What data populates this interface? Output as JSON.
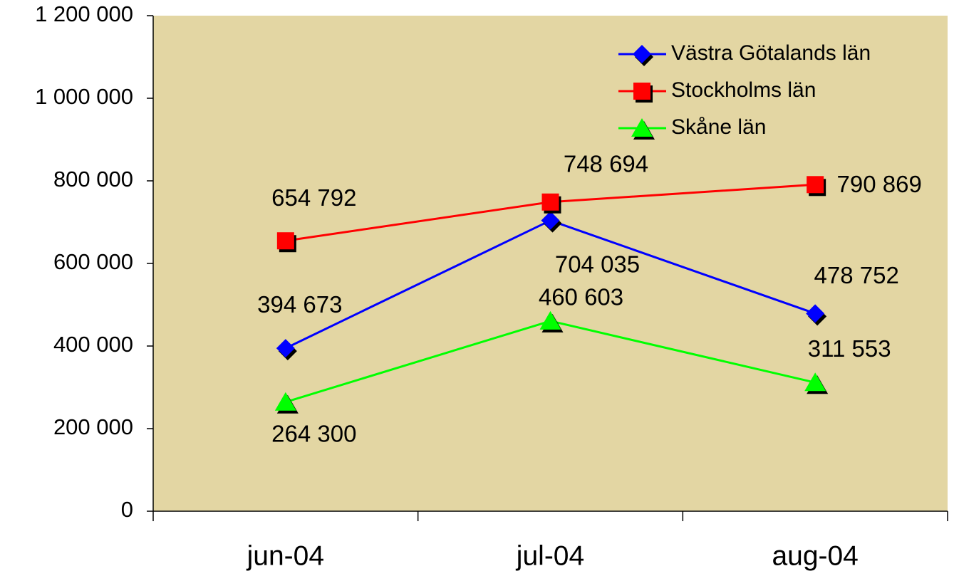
{
  "chart_data": {
    "type": "line",
    "categories": [
      "jun-04",
      "jul-04",
      "aug-04"
    ],
    "series": [
      {
        "name": "Västra Götalands län",
        "color": "#0000ff",
        "marker": "diamond",
        "values": [
          394673,
          704035,
          478752
        ],
        "value_labels": [
          "394 673",
          "704 035",
          "478 752"
        ]
      },
      {
        "name": "Stockholms län",
        "color": "#ff0000",
        "marker": "square",
        "values": [
          654792,
          748694,
          790869
        ],
        "value_labels": [
          "654 792",
          "748 694",
          "790 869"
        ]
      },
      {
        "name": "Skåne län",
        "color": "#00ff00",
        "marker": "triangle",
        "values": [
          264300,
          460603,
          311553
        ],
        "value_labels": [
          "264 300",
          "460 603",
          "311 553"
        ]
      }
    ],
    "ylim": [
      0,
      1200000
    ],
    "yticks": [
      0,
      {
        "value": 200000,
        "label": "200 000"
      },
      {
        "value": 400000,
        "label": "400 000"
      },
      {
        "value": 600000,
        "label": "600 000"
      },
      {
        "value": 800000,
        "label": "800 000"
      },
      {
        "value": 1000000,
        "label": "1 000 000"
      },
      {
        "value": 1200000,
        "label": "1 200 000"
      }
    ],
    "legend": "upper right",
    "background": "#e3d6a3"
  }
}
